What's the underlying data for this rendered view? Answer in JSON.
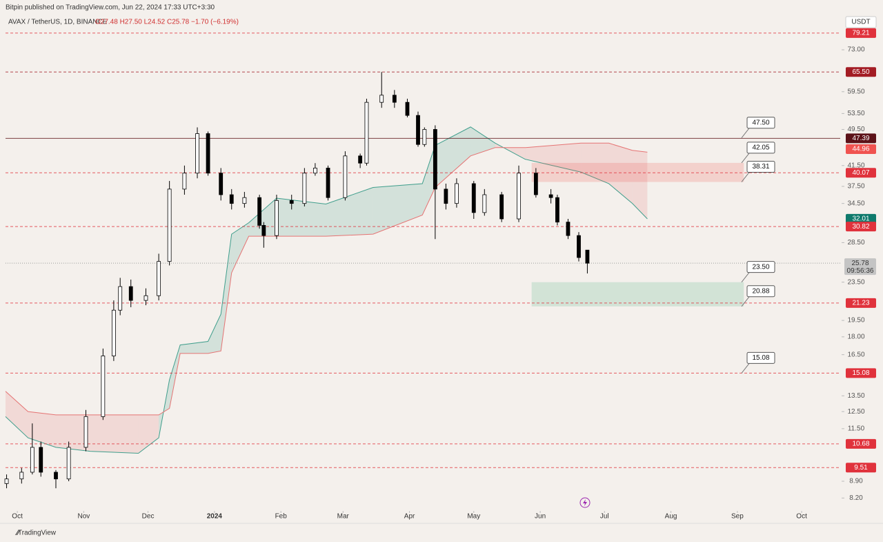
{
  "header": {
    "published": "Bitpin published on TradingView.com, Jun 22, 2024 17:33 UTC+3:30",
    "symbol": "AVAX / TetherUS, 1D, BINANCE",
    "ohlc": "O27.48 H27.50 L24.52 C25.78 −1.70 (−6.19%)",
    "currency": "USDT"
  },
  "footer": {
    "brand": "TradingView"
  },
  "chart_data": {
    "type": "candlestick",
    "log_scale": true,
    "grid": false,
    "xlim": [
      -5.5,
      384
    ],
    "ylim": [
      7.7,
      87
    ],
    "xticks": [
      {
        "value": 0,
        "label": "Oct"
      },
      {
        "value": 31,
        "label": "Nov"
      },
      {
        "value": 61,
        "label": "Dec"
      },
      {
        "value": 92,
        "label": "2024"
      },
      {
        "value": 123,
        "label": "Feb"
      },
      {
        "value": 152,
        "label": "Mar"
      },
      {
        "value": 183,
        "label": "Apr"
      },
      {
        "value": 213,
        "label": "May"
      },
      {
        "value": 244,
        "label": "Jun"
      },
      {
        "value": 274,
        "label": "Jul"
      },
      {
        "value": 305,
        "label": "Aug"
      },
      {
        "value": 336,
        "label": "Sep"
      },
      {
        "value": 366,
        "label": "Oct"
      }
    ],
    "yticks": [
      {
        "value": 73,
        "label": "73.00"
      },
      {
        "value": 59.5,
        "label": "59.50"
      },
      {
        "value": 53.5,
        "label": "53.50"
      },
      {
        "value": 49.5,
        "label": "49.50"
      },
      {
        "value": 41.5,
        "label": "41.50"
      },
      {
        "value": 37.5,
        "label": "37.50"
      },
      {
        "value": 34.5,
        "label": "34.50"
      },
      {
        "value": 28.5,
        "label": "28.50"
      },
      {
        "value": 23.5,
        "label": "23.50"
      },
      {
        "value": 19.5,
        "label": "19.50"
      },
      {
        "value": 18,
        "label": "18.00"
      },
      {
        "value": 16.5,
        "label": "16.50"
      },
      {
        "value": 13.5,
        "label": "13.50"
      },
      {
        "value": 12.5,
        "label": "12.50"
      },
      {
        "value": 11.5,
        "label": "11.50"
      },
      {
        "value": 8.9,
        "label": "8.90"
      },
      {
        "value": 8.2,
        "label": "8.20"
      }
    ],
    "candles": {
      "up_color": "#ffffff",
      "down_color": "#000000",
      "x": [
        -5,
        2,
        7,
        11,
        18,
        24,
        32,
        40,
        45,
        48,
        53,
        60,
        66,
        71,
        78,
        84,
        89,
        95,
        100,
        106,
        113,
        115,
        121,
        128,
        134,
        139,
        145,
        153,
        160,
        163,
        170,
        176,
        182,
        187,
        190,
        195,
        200,
        205,
        213,
        218,
        226,
        234,
        242,
        249,
        252,
        257,
        262,
        266
      ],
      "open": [
        8.8,
        9.0,
        9.3,
        10.5,
        9.3,
        9.0,
        10.5,
        12.2,
        16.4,
        20.5,
        23.0,
        21.5,
        22.0,
        26,
        37,
        40,
        48.5,
        40,
        36,
        34.5,
        35.5,
        31,
        29.5,
        35,
        34.5,
        40,
        41,
        35.5,
        43.5,
        42,
        56.5,
        58.5,
        56.5,
        53,
        46,
        49.5,
        37,
        34.5,
        38,
        33,
        36,
        32,
        40,
        36,
        35.5,
        31.5,
        29.5,
        27.48
      ],
      "high": [
        9.2,
        9.5,
        11.8,
        10.8,
        9.4,
        10.8,
        12.6,
        17,
        21.5,
        24,
        23.8,
        22.8,
        27,
        38.5,
        41.5,
        50,
        49,
        41,
        37,
        36.5,
        36,
        31.5,
        36,
        36,
        41,
        42,
        41.5,
        44.5,
        44,
        57.5,
        65.5,
        60,
        57.5,
        54,
        50,
        50.5,
        38,
        39,
        38.5,
        37,
        36.5,
        41.5,
        41,
        37,
        36,
        32,
        30,
        27.5
      ],
      "low": [
        8.6,
        8.8,
        9.2,
        9.1,
        8.6,
        8.9,
        10.3,
        12,
        16,
        20,
        20.8,
        21,
        21.5,
        25.5,
        36,
        39,
        39.5,
        35,
        33.5,
        33.8,
        30.5,
        27.8,
        29,
        33.5,
        34,
        39.5,
        35,
        35,
        41,
        41.5,
        55,
        55,
        52.5,
        45.5,
        45.5,
        29,
        33.5,
        33.8,
        32,
        32.5,
        31.5,
        31.5,
        35.5,
        34.5,
        31,
        29,
        26,
        24.52
      ],
      "close": [
        9.0,
        9.3,
        10.5,
        9.3,
        9.0,
        10.5,
        12.2,
        16.4,
        20.5,
        23.0,
        21.5,
        22.0,
        26,
        37,
        40,
        48.5,
        40,
        36,
        34.5,
        35.5,
        31,
        29.5,
        35,
        34.5,
        40,
        41,
        35.5,
        43.5,
        42,
        56.5,
        58.5,
        56.5,
        53,
        46,
        49.5,
        37,
        34.5,
        38,
        33,
        36,
        32,
        40,
        36,
        35.5,
        31.5,
        29.5,
        26.5,
        25.78
      ]
    },
    "cloud": {
      "color_a": "#3f9e8c",
      "color_b": "#e57373",
      "x": [
        -5.5,
        5,
        18,
        34,
        56.5,
        66,
        71,
        76,
        89,
        95,
        100,
        108,
        121,
        144,
        166,
        189,
        195,
        211.5,
        223,
        237,
        263,
        276,
        287,
        294
      ],
      "span_a": [
        12.2,
        11.0,
        10.5,
        10.3,
        10.2,
        11.0,
        14.6,
        17.3,
        17.6,
        20.1,
        29.7,
        31.4,
        35.4,
        34.4,
        37.3,
        38.0,
        45.8,
        50.1,
        46.3,
        42.8,
        40.2,
        38.0,
        34.5,
        32.0
      ],
      "span_b": [
        13.8,
        12.5,
        12.3,
        12.3,
        12.3,
        12.3,
        12.7,
        16.6,
        16.6,
        16.8,
        24.6,
        29.4,
        29.4,
        29.4,
        29.7,
        32.6,
        37.3,
        43.5,
        45.3,
        45.3,
        46.3,
        46.3,
        44.7,
        44.3
      ]
    },
    "zones": [
      {
        "x": [
          240,
          339
        ],
        "low": 38.31,
        "high": 42.05,
        "color": "#f05350"
      },
      {
        "x": [
          240,
          339
        ],
        "low": 20.88,
        "high": 23.5,
        "color": "#4caf80"
      }
    ],
    "callouts": [
      {
        "value": 47.5,
        "label": "47.50"
      },
      {
        "value": 42.05,
        "label": "42.05"
      },
      {
        "value": 38.31,
        "label": "38.31"
      },
      {
        "value": 23.5,
        "label": "23.50"
      },
      {
        "value": 20.88,
        "label": "20.88"
      },
      {
        "value": 15.08,
        "label": "15.08"
      }
    ],
    "price_badges": [
      {
        "value": 79.21,
        "label": "79.21",
        "color": "#e0323c",
        "line": "dashed"
      },
      {
        "value": 65.5,
        "label": "65.50",
        "color": "#a31c24",
        "line": "dashed"
      },
      {
        "value": 47.39,
        "label": "47.39",
        "color": "#5c1218",
        "line": "solid"
      },
      {
        "value": 44.96,
        "label": "44.96",
        "color": "#f05350",
        "line": "none"
      },
      {
        "value": 40.07,
        "label": "40.07",
        "color": "#e0323c",
        "line": "dashed"
      },
      {
        "value": 32.01,
        "label": "32.01",
        "color": "#0f7a6c",
        "line": "none"
      },
      {
        "value": 30.82,
        "label": "30.82",
        "color": "#e0323c",
        "line": "dashed"
      },
      {
        "value": 21.23,
        "label": "21.23",
        "color": "#e0323c",
        "line": "dashed"
      },
      {
        "value": 15.08,
        "label": "15.08",
        "color": "#e0323c",
        "line": "dashed"
      },
      {
        "value": 10.68,
        "label": "10.68",
        "color": "#e0323c",
        "line": "dashed"
      },
      {
        "value": 9.51,
        "label": "9.51",
        "color": "#e0323c",
        "line": "dashed"
      }
    ],
    "last_price": {
      "value": 25.78,
      "label": "25.78",
      "countdown": "09:56:36",
      "color": "#c4c4c4"
    }
  }
}
